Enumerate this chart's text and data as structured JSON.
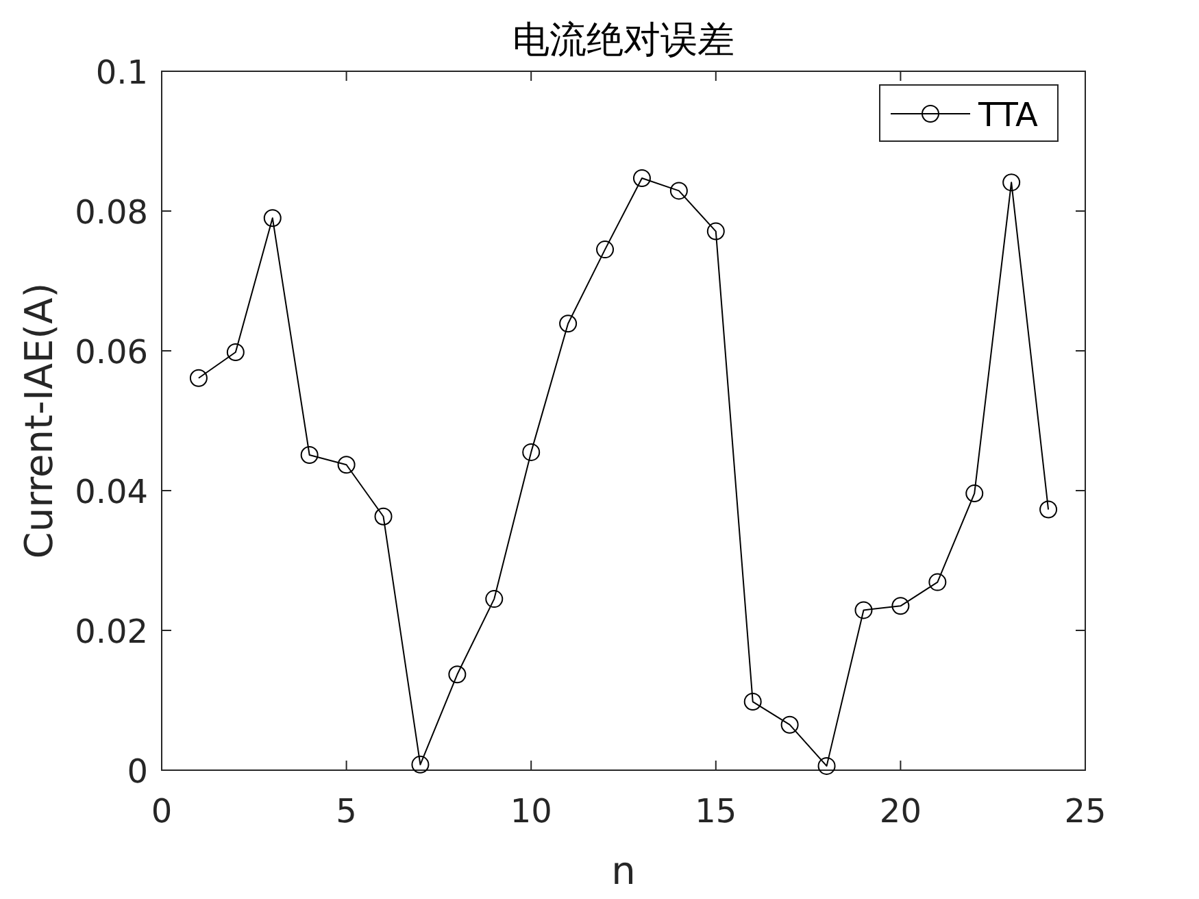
{
  "chart_data": {
    "type": "line",
    "title": "电流绝对误差",
    "xlabel": "n",
    "ylabel": "Current-IAE(A)",
    "x": [
      1,
      2,
      3,
      4,
      5,
      6,
      7,
      8,
      9,
      10,
      11,
      12,
      13,
      14,
      15,
      16,
      17,
      18,
      19,
      20,
      21,
      22,
      23,
      24
    ],
    "series": [
      {
        "name": "TTA",
        "color": "#000000",
        "values": [
          0.0561,
          0.0598,
          0.079,
          0.0451,
          0.0437,
          0.0363,
          0.0008,
          0.0137,
          0.0245,
          0.0455,
          0.0639,
          0.0745,
          0.0847,
          0.0829,
          0.0771,
          0.0098,
          0.0065,
          0.0006,
          0.0229,
          0.0235,
          0.0269,
          0.0396,
          0.0841,
          0.0373
        ]
      }
    ],
    "xlim": [
      0,
      25
    ],
    "ylim": [
      0,
      0.1
    ],
    "xticks": [
      0,
      5,
      10,
      15,
      20,
      25
    ],
    "yticks": [
      0,
      0.02,
      0.04,
      0.06,
      0.08,
      0.1
    ],
    "marker": "circle",
    "line_style": "solid",
    "legend": "top right"
  }
}
